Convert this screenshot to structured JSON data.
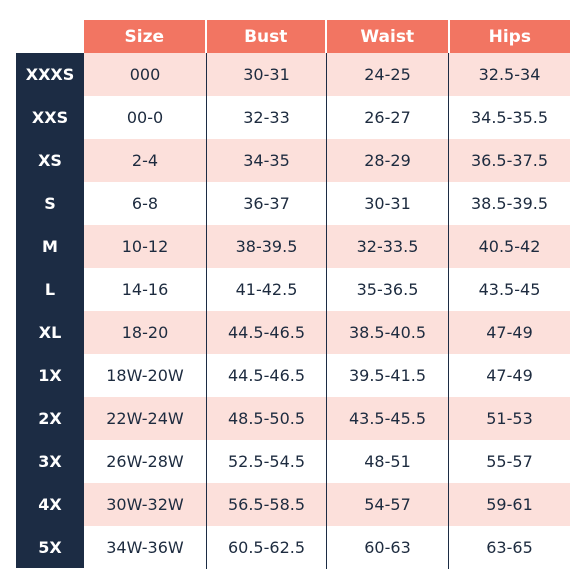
{
  "table": {
    "headers": [
      "Size",
      "Bust",
      "Waist",
      "Hips"
    ],
    "rows": [
      {
        "label": "XXXS",
        "cells": [
          "000",
          "30-31",
          "24-25",
          "32.5-34"
        ]
      },
      {
        "label": "XXS",
        "cells": [
          "00-0",
          "32-33",
          "26-27",
          "34.5-35.5"
        ]
      },
      {
        "label": "XS",
        "cells": [
          "2-4",
          "34-35",
          "28-29",
          "36.5-37.5"
        ]
      },
      {
        "label": "S",
        "cells": [
          "6-8",
          "36-37",
          "30-31",
          "38.5-39.5"
        ]
      },
      {
        "label": "M",
        "cells": [
          "10-12",
          "38-39.5",
          "32-33.5",
          "40.5-42"
        ]
      },
      {
        "label": "L",
        "cells": [
          "14-16",
          "41-42.5",
          "35-36.5",
          "43.5-45"
        ]
      },
      {
        "label": "XL",
        "cells": [
          "18-20",
          "44.5-46.5",
          "38.5-40.5",
          "47-49"
        ]
      },
      {
        "label": "1X",
        "cells": [
          "18W-20W",
          "44.5-46.5",
          "39.5-41.5",
          "47-49"
        ]
      },
      {
        "label": "2X",
        "cells": [
          "22W-24W",
          "48.5-50.5",
          "43.5-45.5",
          "51-53"
        ]
      },
      {
        "label": "3X",
        "cells": [
          "26W-28W",
          "52.5-54.5",
          "48-51",
          "55-57"
        ]
      },
      {
        "label": "4X",
        "cells": [
          "30W-32W",
          "56.5-58.5",
          "54-57",
          "59-61"
        ]
      },
      {
        "label": "5X",
        "cells": [
          "34W-36W",
          "60.5-62.5",
          "60-63",
          "63-65"
        ]
      }
    ]
  },
  "colors": {
    "header_bg": "#f27562",
    "label_col_bg": "#1c2c44",
    "shaded_row_bg": "#fce0db",
    "text": "#1d2b3f"
  }
}
